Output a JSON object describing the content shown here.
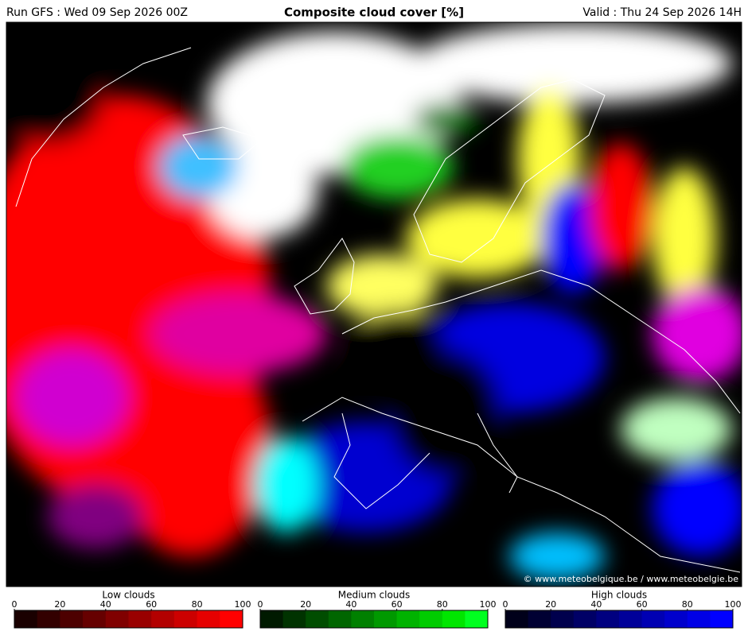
{
  "header": {
    "run": "Run GFS : Wed 09 Sep 2026 00Z",
    "title": "Composite cloud cover [%]",
    "valid": "Valid : Thu 24 Sep 2026 14H"
  },
  "map": {
    "credit": "© www.meteobelgique.be / www.meteobelgie.be"
  },
  "legends": [
    {
      "title": "Low clouds",
      "ticks": [
        0,
        20,
        40,
        60,
        80,
        100
      ],
      "colors": [
        "#1a0000",
        "#330000",
        "#4d0000",
        "#660000",
        "#800000",
        "#990000",
        "#b30000",
        "#cc0000",
        "#e60000",
        "#ff0000"
      ]
    },
    {
      "title": "Medium clouds",
      "ticks": [
        0,
        20,
        40,
        60,
        80,
        100
      ],
      "colors": [
        "#001a00",
        "#003300",
        "#004d00",
        "#006600",
        "#008000",
        "#009900",
        "#00b300",
        "#00cc00",
        "#00e600",
        "#00ff20"
      ]
    },
    {
      "title": "High clouds",
      "ticks": [
        0,
        20,
        40,
        60,
        80,
        100
      ],
      "colors": [
        "#00001a",
        "#000033",
        "#00004d",
        "#000066",
        "#000080",
        "#000099",
        "#0000b3",
        "#0000cc",
        "#0000e6",
        "#0000ff"
      ]
    }
  ]
}
